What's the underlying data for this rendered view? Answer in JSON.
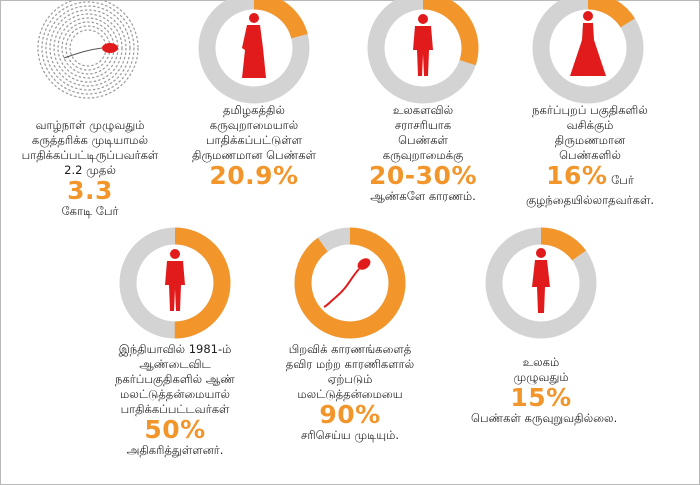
{
  "colors": {
    "accent": "#f2962c",
    "track": "#d3d3d3",
    "figure": "#e11b1b"
  },
  "chart_data": {
    "type": "pie",
    "style": "donut-infographic",
    "items": [
      {
        "icon": "sperm-egg-illustration",
        "value_label": "3.3",
        "lines_before": [
          "வாழ்நாள் முழுவதும்",
          "கருத்தரிக்க முடியாமல்",
          "பாதிக்கப்பட்டிருப்பவர்கள்",
          "2.2 முதல்"
        ],
        "line_after": "கோடி பேர்"
      },
      {
        "icon": "woman-in-saree-icon",
        "percent": 20.9,
        "value_label": "20.9%",
        "lines_before": [
          "தமிழகத்தில்",
          "கருவுறாமையால்",
          "பாதிக்கப்பட்டுள்ள",
          "திருமணமான பெண்கள்"
        ],
        "line_after": ""
      },
      {
        "icon": "man-icon",
        "percent": 30,
        "value_label": "20-30%",
        "lines_before": [
          "உலகளவில்",
          "சராசரியாக",
          "பெண்கள்",
          "கருவுறாமைக்கு"
        ],
        "line_after": "ஆண்களே காரணம்."
      },
      {
        "icon": "woman-in-gown-icon",
        "percent": 16,
        "value_label": "16%",
        "value_suffix": " பேர்",
        "lines_before": [
          "நகர்ப்புறப் பகுதிகளில்",
          "வசிக்கும்",
          "திருமணமான",
          "பெண்களில்"
        ],
        "line_after": "குழந்தையில்லாதவர்கள்."
      },
      {
        "icon": "man-icon",
        "percent": 50,
        "value_label": "50%",
        "lines_before": [
          "இந்தியாவில் 1981-ம்",
          "ஆண்டைவிட",
          "நகர்ப்பகுதிகளில் ஆண்",
          "மலட்டுத்தன்மையால்",
          "பாதிக்கப்பட்டவர்கள்"
        ],
        "line_after": "அதிகரித்துள்ளனர்."
      },
      {
        "icon": "sperm-icon",
        "percent": 90,
        "value_label": "90%",
        "lines_before": [
          "பிறவிக் காரணங்களைத்",
          "தவிர மற்ற காரணிகளால்",
          "ஏற்படும்",
          "மலட்டுத்தன்மையை"
        ],
        "line_after": "சரிசெய்ய முடியும்."
      },
      {
        "icon": "woman-icon",
        "percent": 15,
        "value_label": "15%",
        "lines_before": [
          "உலகம்",
          "முழுவதும்"
        ],
        "line_after": "பெண்கள் கருவுறுவதில்லை."
      }
    ]
  }
}
